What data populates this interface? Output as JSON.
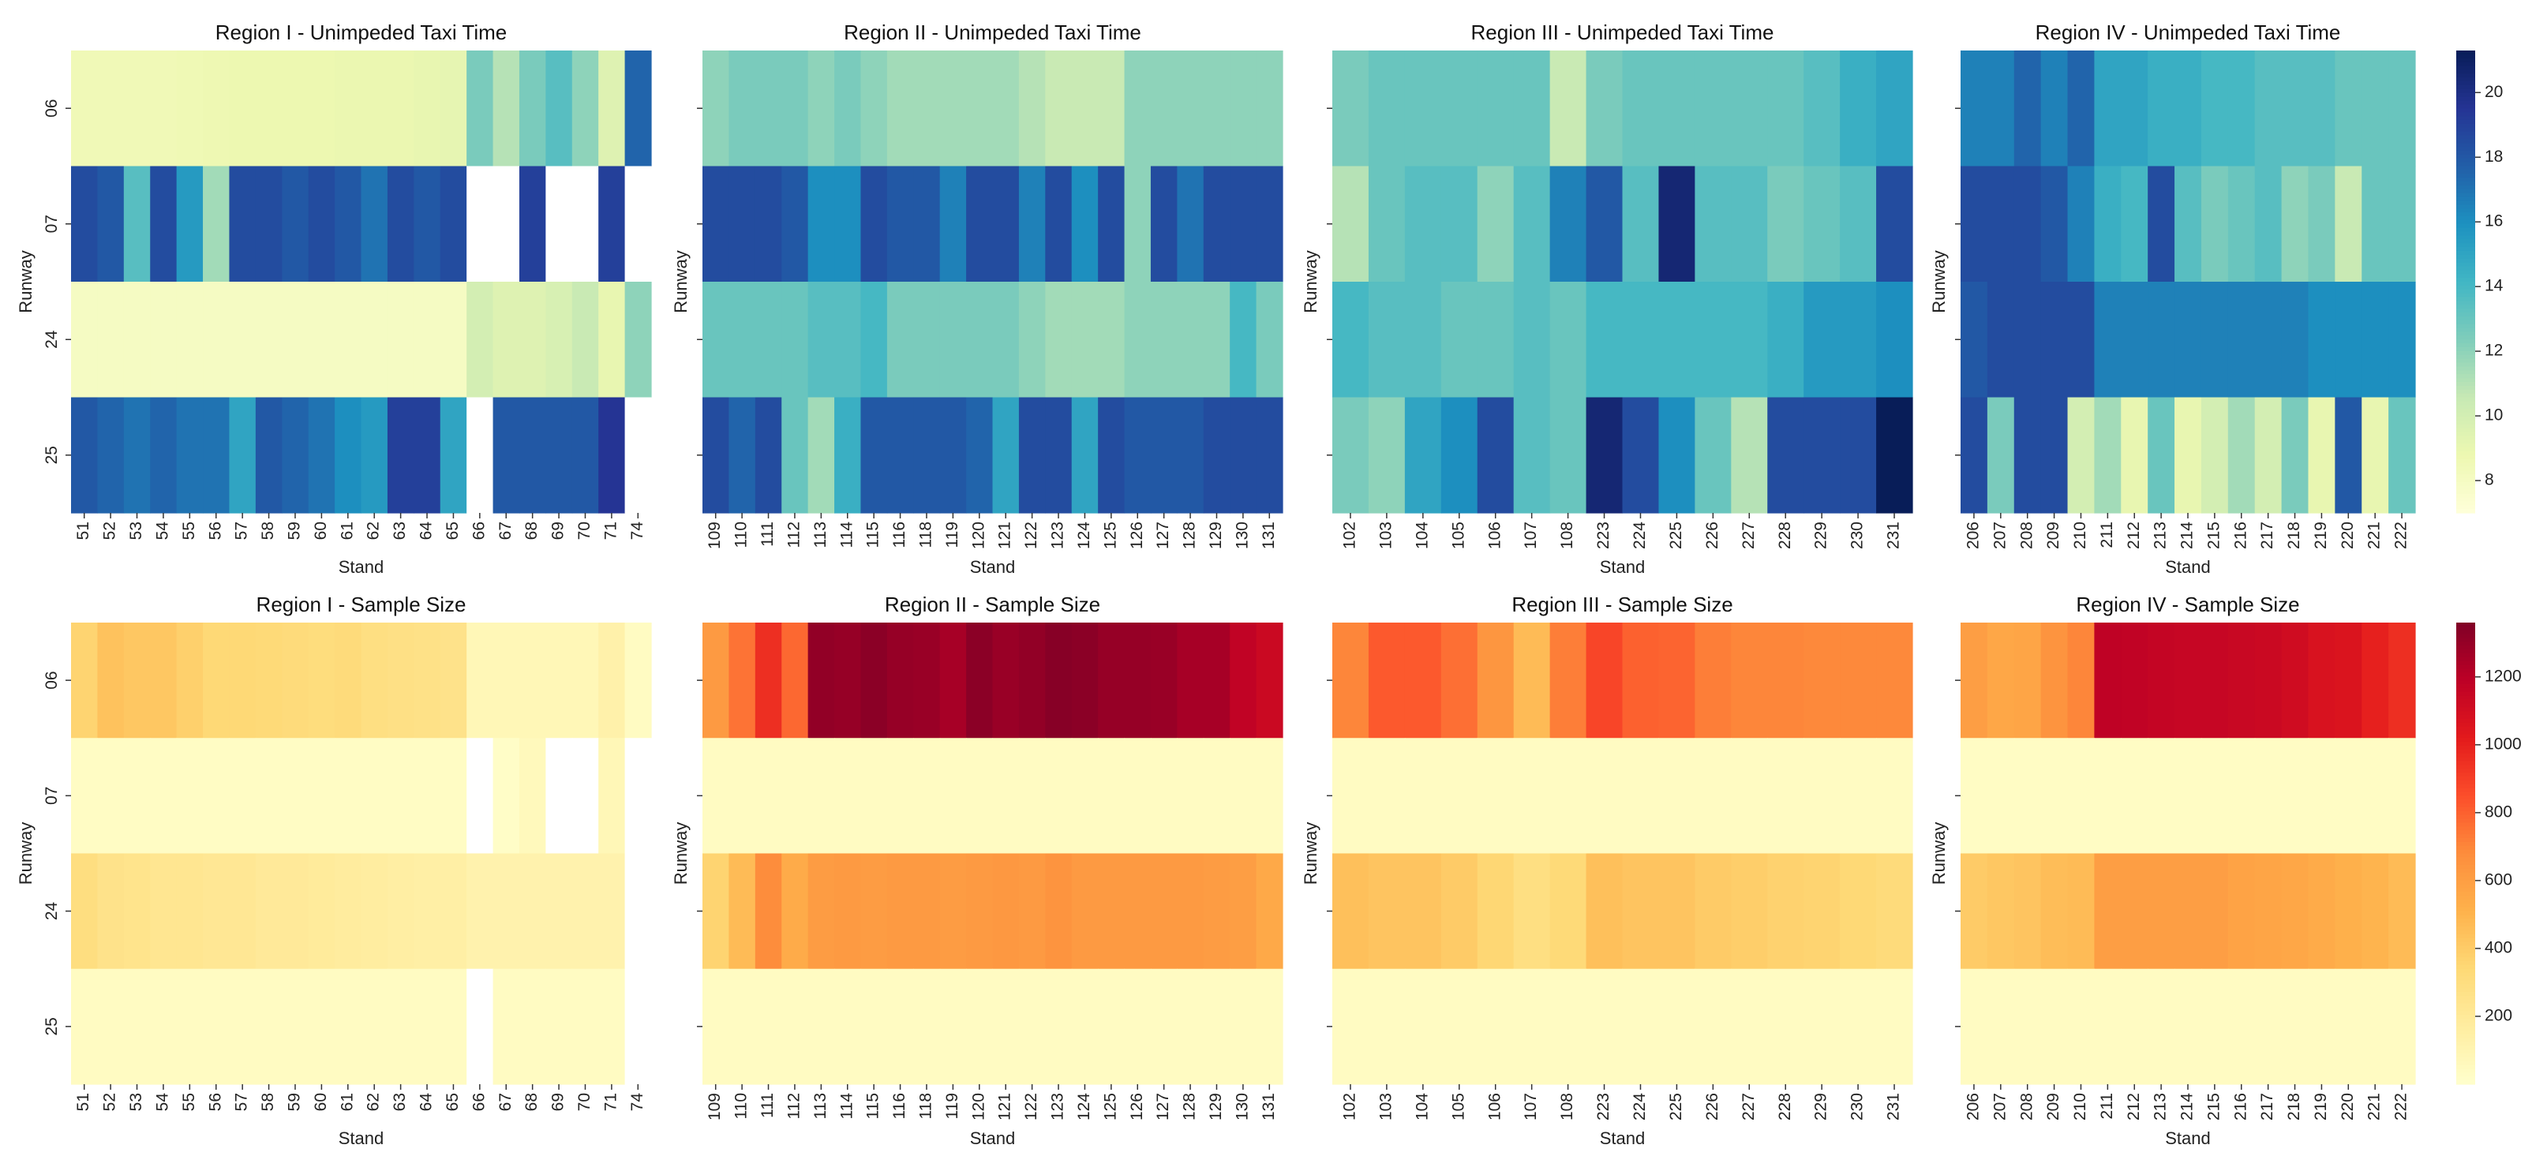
{
  "figure": {
    "rows": [
      "06",
      "07",
      "24",
      "25"
    ],
    "xlabel": "Stand",
    "ylabel": "Runway"
  },
  "regions": [
    {
      "name": "Region I",
      "stands": [
        "51",
        "52",
        "53",
        "54",
        "55",
        "56",
        "57",
        "58",
        "59",
        "60",
        "61",
        "62",
        "63",
        "64",
        "65",
        "66",
        "67",
        "68",
        "69",
        "70",
        "71",
        "74"
      ]
    },
    {
      "name": "Region II",
      "stands": [
        "109",
        "110",
        "111",
        "112",
        "113",
        "114",
        "115",
        "116",
        "118",
        "119",
        "120",
        "121",
        "122",
        "123",
        "124",
        "125",
        "126",
        "127",
        "128",
        "129",
        "130",
        "131"
      ]
    },
    {
      "name": "Region III",
      "stands": [
        "102",
        "103",
        "104",
        "105",
        "106",
        "107",
        "108",
        "223",
        "224",
        "225",
        "226",
        "227",
        "228",
        "229",
        "230",
        "231"
      ]
    },
    {
      "name": "Region IV",
      "stands": [
        "206",
        "207",
        "208",
        "209",
        "210",
        "211",
        "212",
        "213",
        "214",
        "215",
        "216",
        "217",
        "218",
        "219",
        "220",
        "221",
        "222"
      ]
    }
  ],
  "colorbars": {
    "taxi": {
      "cmap": "YlGnBu",
      "min": 7,
      "max": 21.3,
      "ticks": [
        8,
        10,
        12,
        14,
        16,
        18,
        20
      ]
    },
    "sample": {
      "cmap": "YlOrRd",
      "min": 0,
      "max": 1360,
      "ticks": [
        200,
        400,
        600,
        800,
        1000,
        1200
      ]
    }
  },
  "chart_data": [
    {
      "type": "heatmap",
      "title": "Region I - Unimpeded Taxi Time",
      "xlabel": "Stand",
      "ylabel": "Runway",
      "x": [
        "51",
        "52",
        "53",
        "54",
        "55",
        "56",
        "57",
        "58",
        "59",
        "60",
        "61",
        "62",
        "63",
        "64",
        "65",
        "66",
        "67",
        "68",
        "69",
        "70",
        "71",
        "74"
      ],
      "y": [
        "06",
        "07",
        "24",
        "25"
      ],
      "values": [
        [
          8.5,
          8.5,
          8.5,
          8.5,
          8.6,
          8.7,
          8.8,
          8.8,
          8.8,
          8.8,
          8.9,
          8.9,
          8.9,
          9.0,
          9.1,
          12.5,
          11.0,
          12.5,
          13.5,
          12.0,
          9.5,
          17.5
        ],
        [
          18.5,
          18.0,
          13.5,
          18.5,
          15.5,
          11.5,
          18.5,
          18.5,
          18.0,
          18.5,
          18.0,
          17.0,
          18.5,
          18.0,
          18.5,
          null,
          null,
          19.0,
          null,
          null,
          19.0,
          null
        ],
        [
          8.0,
          8.0,
          8.0,
          8.0,
          8.0,
          8.0,
          8.0,
          8.0,
          8.0,
          8.0,
          8.0,
          8.0,
          8.0,
          8.0,
          8.0,
          10.0,
          9.5,
          9.5,
          9.8,
          10.5,
          9.0,
          12.0
        ],
        [
          18.0,
          17.5,
          17.0,
          17.5,
          17.0,
          17.0,
          15.0,
          18.0,
          17.5,
          17.0,
          16.0,
          15.5,
          19.0,
          19.0,
          15.0,
          null,
          18.0,
          18.0,
          18.0,
          18.0,
          19.5,
          null
        ]
      ]
    },
    {
      "type": "heatmap",
      "title": "Region II - Unimpeded Taxi Time",
      "xlabel": "Stand",
      "ylabel": "Runway",
      "x": [
        "109",
        "110",
        "111",
        "112",
        "113",
        "114",
        "115",
        "116",
        "118",
        "119",
        "120",
        "121",
        "122",
        "123",
        "124",
        "125",
        "126",
        "127",
        "128",
        "129",
        "130",
        "131"
      ],
      "y": [
        "06",
        "07",
        "24",
        "25"
      ],
      "values": [
        [
          12.0,
          12.5,
          12.5,
          12.5,
          12.0,
          12.5,
          12.0,
          11.5,
          11.5,
          11.5,
          11.5,
          11.5,
          11.0,
          10.5,
          10.5,
          10.5,
          12.0,
          12.0,
          12.0,
          12.0,
          12.0,
          12.0
        ],
        [
          18.5,
          18.5,
          18.5,
          18.0,
          16.0,
          16.0,
          18.5,
          18.0,
          18.0,
          16.5,
          18.5,
          18.5,
          16.5,
          18.5,
          16.0,
          18.5,
          12.0,
          18.5,
          17.0,
          18.5,
          18.5,
          18.5
        ],
        [
          13.0,
          13.0,
          13.0,
          13.0,
          13.5,
          13.5,
          14.0,
          12.5,
          12.5,
          12.5,
          12.5,
          12.5,
          12.0,
          11.5,
          11.5,
          11.5,
          12.0,
          12.0,
          12.0,
          12.0,
          14.0,
          12.5
        ],
        [
          18.5,
          17.5,
          18.5,
          13.0,
          11.5,
          14.5,
          18.0,
          18.0,
          18.0,
          18.0,
          17.5,
          15.0,
          18.5,
          18.5,
          15.0,
          18.5,
          18.0,
          18.0,
          18.0,
          18.5,
          18.5,
          18.5
        ]
      ]
    },
    {
      "type": "heatmap",
      "title": "Region III - Unimpeded Taxi Time",
      "xlabel": "Stand",
      "ylabel": "Runway",
      "x": [
        "102",
        "103",
        "104",
        "105",
        "106",
        "107",
        "108",
        "223",
        "224",
        "225",
        "226",
        "227",
        "228",
        "229",
        "230",
        "231"
      ],
      "y": [
        "06",
        "07",
        "24",
        "25"
      ],
      "values": [
        [
          12.5,
          13.0,
          13.0,
          13.0,
          13.0,
          13.0,
          10.5,
          12.5,
          13.0,
          13.0,
          13.0,
          13.0,
          13.0,
          13.5,
          14.5,
          15.0
        ],
        [
          11.0,
          13.0,
          13.5,
          13.5,
          12.0,
          13.5,
          16.5,
          18.0,
          13.5,
          20.5,
          13.5,
          13.5,
          12.5,
          13.0,
          13.5,
          18.5
        ],
        [
          14.0,
          13.5,
          13.5,
          13.0,
          13.0,
          13.5,
          13.0,
          14.0,
          14.0,
          14.0,
          14.0,
          14.0,
          14.5,
          15.5,
          15.5,
          16.0
        ],
        [
          12.5,
          12.0,
          15.0,
          16.0,
          18.5,
          13.5,
          13.0,
          20.5,
          18.5,
          16.0,
          13.0,
          11.0,
          18.5,
          18.5,
          18.5,
          21.3
        ]
      ]
    },
    {
      "type": "heatmap",
      "title": "Region IV - Unimpeded Taxi Time",
      "xlabel": "Stand",
      "ylabel": "Runway",
      "x": [
        "206",
        "207",
        "208",
        "209",
        "210",
        "211",
        "212",
        "213",
        "214",
        "215",
        "216",
        "217",
        "218",
        "219",
        "220",
        "221",
        "222"
      ],
      "y": [
        "06",
        "07",
        "24",
        "25"
      ],
      "values": [
        [
          16.5,
          16.5,
          17.5,
          16.5,
          17.5,
          15.0,
          15.0,
          14.5,
          14.5,
          14.0,
          14.0,
          13.5,
          13.5,
          13.5,
          13.0,
          13.0,
          13.0
        ],
        [
          18.5,
          18.5,
          18.5,
          18.0,
          16.5,
          14.5,
          14.0,
          18.5,
          13.5,
          12.5,
          13.0,
          13.5,
          12.0,
          12.5,
          10.5,
          13.0,
          13.0
        ],
        [
          18.0,
          18.5,
          18.5,
          18.5,
          18.5,
          16.5,
          16.5,
          16.5,
          16.5,
          16.5,
          16.5,
          16.5,
          16.5,
          16.0,
          16.0,
          16.0,
          16.0
        ],
        [
          18.5,
          12.5,
          18.5,
          18.5,
          10.0,
          11.5,
          9.0,
          13.0,
          9.0,
          10.0,
          11.5,
          10.0,
          12.5,
          9.0,
          18.0,
          9.0,
          13.0
        ]
      ]
    },
    {
      "type": "heatmap",
      "title": "Region I - Sample Size",
      "xlabel": "Stand",
      "ylabel": "Runway",
      "x": [
        "51",
        "52",
        "53",
        "54",
        "55",
        "56",
        "57",
        "58",
        "59",
        "60",
        "61",
        "62",
        "63",
        "64",
        "65",
        "66",
        "67",
        "68",
        "69",
        "70",
        "71",
        "74"
      ],
      "y": [
        "06",
        "07",
        "24",
        "25"
      ],
      "values": [
        [
          360,
          440,
          420,
          420,
          380,
          340,
          340,
          330,
          320,
          310,
          320,
          290,
          280,
          270,
          260,
          80,
          80,
          80,
          80,
          80,
          130,
          40
        ],
        [
          30,
          30,
          30,
          30,
          30,
          30,
          30,
          30,
          30,
          30,
          30,
          30,
          30,
          30,
          30,
          null,
          20,
          60,
          null,
          null,
          80,
          null
        ],
        [
          300,
          260,
          250,
          230,
          230,
          220,
          220,
          200,
          200,
          190,
          180,
          170,
          160,
          150,
          150,
          120,
          120,
          120,
          120,
          120,
          120,
          null
        ],
        [
          40,
          40,
          40,
          40,
          40,
          40,
          40,
          40,
          40,
          40,
          40,
          40,
          40,
          40,
          40,
          null,
          40,
          40,
          40,
          40,
          40,
          null
        ]
      ]
    },
    {
      "type": "heatmap",
      "title": "Region II - Sample Size",
      "xlabel": "Stand",
      "ylabel": "Runway",
      "x": [
        "109",
        "110",
        "111",
        "112",
        "113",
        "114",
        "115",
        "116",
        "118",
        "119",
        "120",
        "121",
        "122",
        "123",
        "124",
        "125",
        "126",
        "127",
        "128",
        "129",
        "130",
        "131"
      ],
      "y": [
        "06",
        "07",
        "24",
        "25"
      ],
      "values": [
        [
          620,
          750,
          950,
          780,
          1310,
          1300,
          1330,
          1300,
          1290,
          1250,
          1330,
          1290,
          1310,
          1340,
          1330,
          1300,
          1300,
          1290,
          1250,
          1250,
          1170,
          1130
        ],
        [
          40,
          40,
          40,
          40,
          40,
          40,
          40,
          40,
          40,
          40,
          40,
          40,
          40,
          40,
          40,
          40,
          40,
          40,
          40,
          40,
          40,
          40
        ],
        [
          360,
          470,
          680,
          540,
          610,
          620,
          610,
          620,
          620,
          610,
          620,
          630,
          620,
          650,
          620,
          620,
          620,
          620,
          620,
          610,
          600,
          550
        ],
        [
          40,
          40,
          40,
          40,
          40,
          40,
          40,
          40,
          40,
          40,
          40,
          40,
          40,
          40,
          40,
          40,
          40,
          40,
          40,
          40,
          40,
          40
        ]
      ]
    },
    {
      "type": "heatmap",
      "title": "Region III - Sample Size",
      "xlabel": "Stand",
      "ylabel": "Runway",
      "x": [
        "102",
        "103",
        "104",
        "105",
        "106",
        "107",
        "108",
        "223",
        "224",
        "225",
        "226",
        "227",
        "228",
        "229",
        "230",
        "231"
      ],
      "y": [
        "06",
        "07",
        "24",
        "25"
      ],
      "values": [
        [
          700,
          820,
          820,
          760,
          640,
          470,
          720,
          880,
          800,
          790,
          720,
          700,
          700,
          690,
          690,
          690
        ],
        [
          40,
          40,
          40,
          40,
          40,
          40,
          40,
          40,
          40,
          40,
          40,
          40,
          40,
          40,
          40,
          40
        ],
        [
          450,
          430,
          430,
          400,
          350,
          290,
          330,
          450,
          430,
          430,
          400,
          390,
          370,
          360,
          340,
          320
        ],
        [
          40,
          40,
          40,
          40,
          40,
          40,
          40,
          40,
          40,
          40,
          40,
          40,
          40,
          40,
          40,
          40
        ]
      ]
    },
    {
      "type": "heatmap",
      "title": "Region IV - Sample Size",
      "xlabel": "Stand",
      "ylabel": "Runway",
      "x": [
        "206",
        "207",
        "208",
        "209",
        "210",
        "211",
        "212",
        "213",
        "214",
        "215",
        "216",
        "217",
        "218",
        "219",
        "220",
        "221",
        "222"
      ],
      "y": [
        "06",
        "07",
        "24",
        "25"
      ],
      "values": [
        [
          600,
          560,
          570,
          650,
          700,
          1180,
          1170,
          1160,
          1150,
          1150,
          1140,
          1130,
          1110,
          1070,
          1060,
          1000,
          950
        ],
        [
          30,
          30,
          30,
          30,
          30,
          30,
          30,
          30,
          30,
          30,
          30,
          30,
          30,
          30,
          30,
          30,
          30
        ],
        [
          400,
          420,
          430,
          460,
          470,
          600,
          600,
          600,
          600,
          600,
          580,
          570,
          560,
          540,
          520,
          500,
          470
        ],
        [
          40,
          40,
          40,
          40,
          40,
          40,
          40,
          40,
          40,
          40,
          40,
          40,
          40,
          40,
          40,
          40,
          40
        ]
      ]
    }
  ]
}
